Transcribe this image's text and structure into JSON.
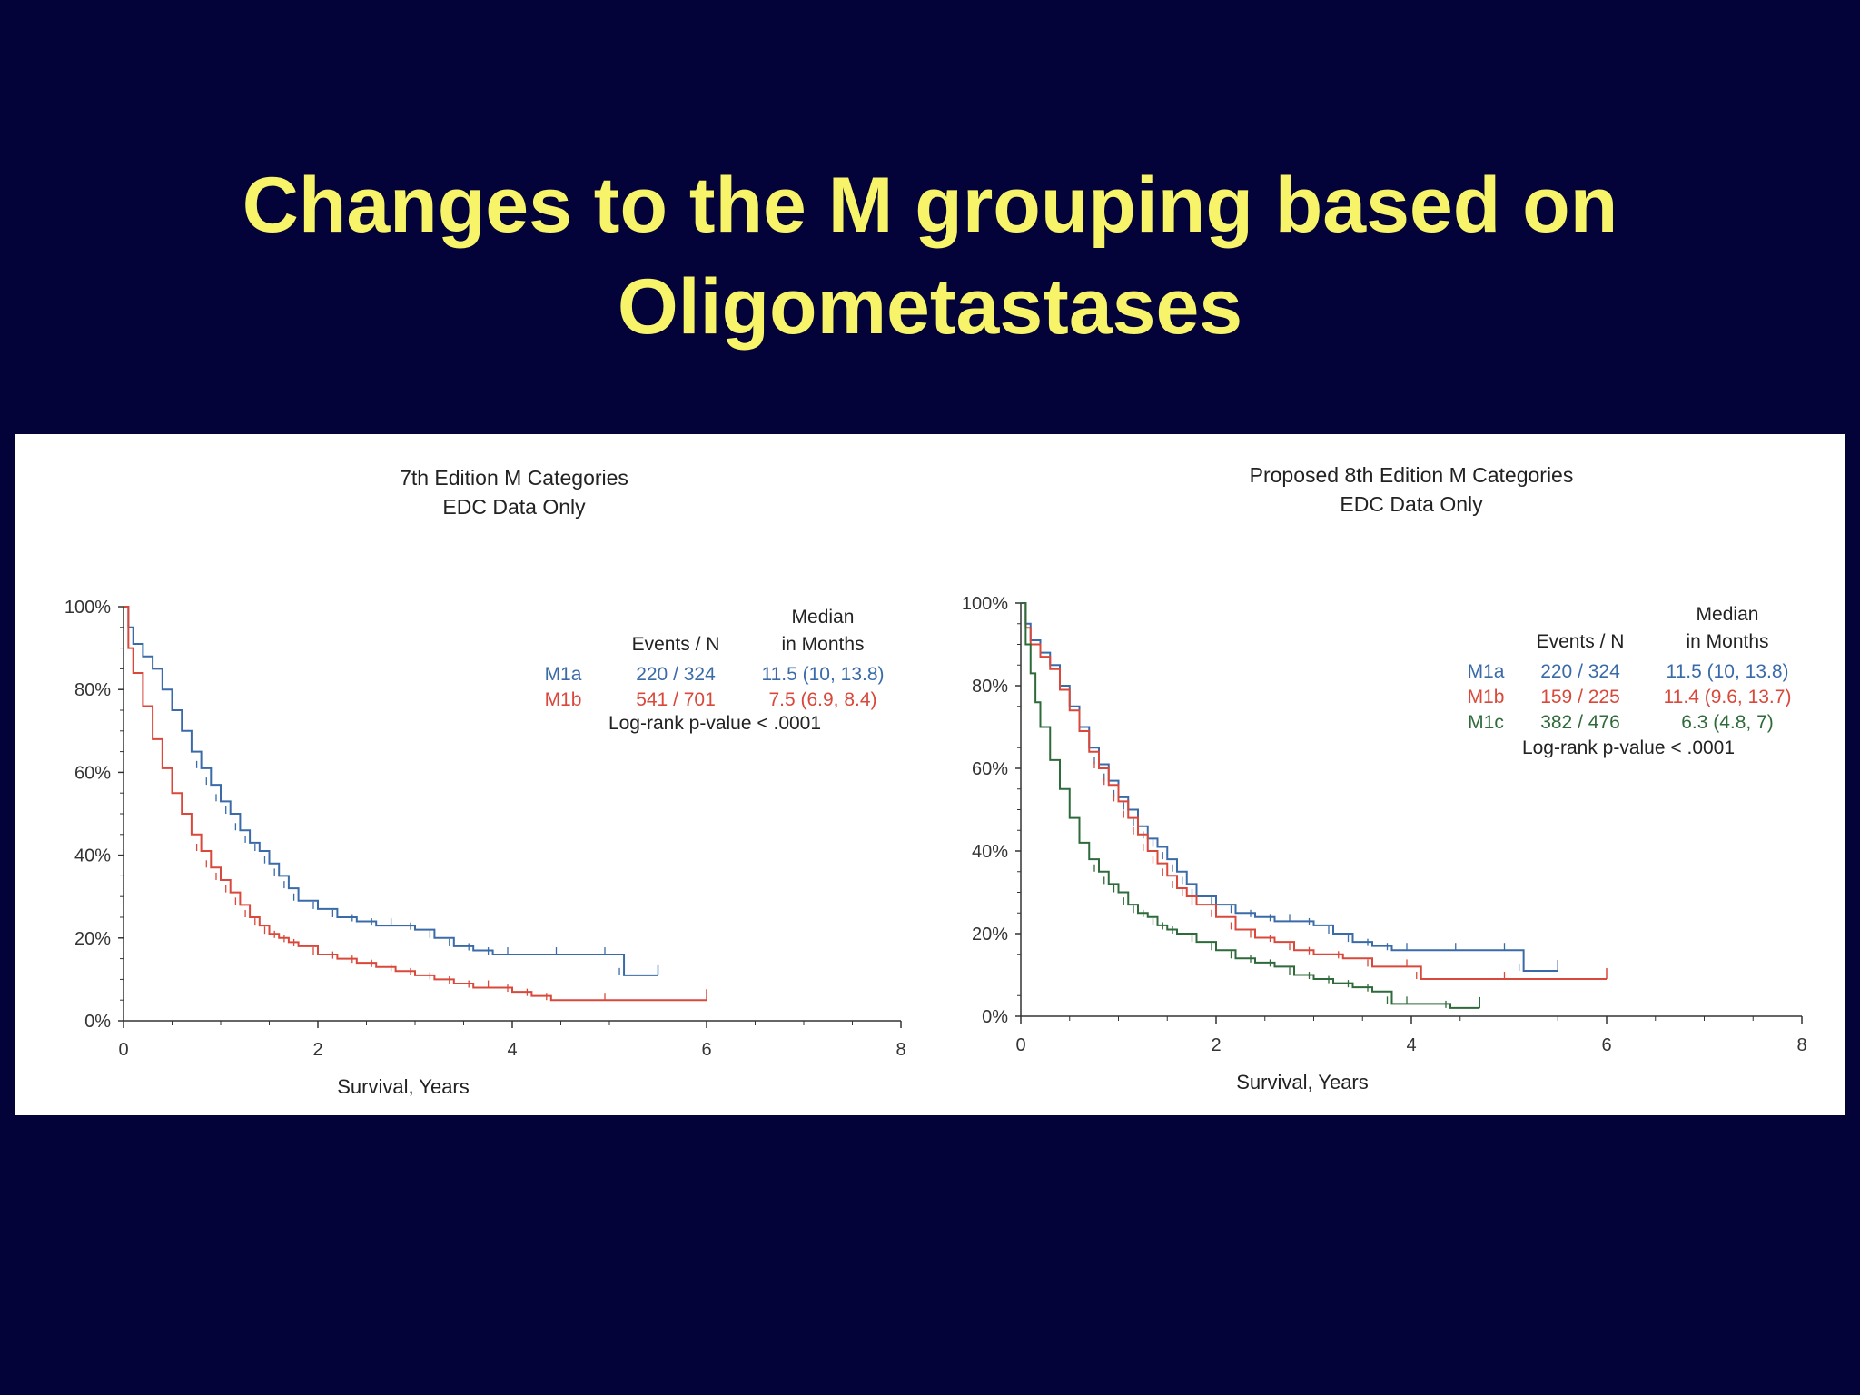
{
  "slide": {
    "title_line1": "Changes to the M grouping based on",
    "title_line2": "Oligometastases"
  },
  "chart_data": [
    {
      "type": "line",
      "subtype": "kaplan-meier",
      "title": "7th Edition M Categories",
      "subtitle": "EDC Data Only",
      "xlabel": "Survival, Years",
      "ylabel": "",
      "xlim": [
        0,
        8
      ],
      "ylim": [
        0,
        100
      ],
      "x_ticks": [
        "0",
        "2",
        "4",
        "6",
        "8"
      ],
      "y_ticks": [
        "0%",
        "20%",
        "40%",
        "60%",
        "80%",
        "100%"
      ],
      "legend": {
        "placement": "top-right",
        "header_events": "Events / N",
        "header_median_1": "Median",
        "header_median_2": "in Months",
        "rows": [
          {
            "label": "M1a",
            "events": "220 / 324",
            "median": "11.5 (10, 13.8)",
            "color": "#3a6ba8"
          },
          {
            "label": "M1b",
            "events": "541 / 701",
            "median": "7.5 (6.9, 8.4)",
            "color": "#d9483b"
          }
        ],
        "pvalue": "Log-rank p-value < .0001"
      },
      "series": [
        {
          "name": "M1a",
          "color": "#3a6ba8",
          "x": [
            0,
            0.05,
            0.1,
            0.2,
            0.3,
            0.4,
            0.5,
            0.6,
            0.7,
            0.8,
            0.9,
            1.0,
            1.1,
            1.2,
            1.3,
            1.4,
            1.5,
            1.6,
            1.7,
            1.8,
            2.0,
            2.2,
            2.4,
            2.6,
            2.8,
            3.0,
            3.2,
            3.4,
            3.6,
            3.8,
            4.0,
            4.5,
            5.0,
            5.15,
            5.5
          ],
          "y": [
            100,
            95,
            91,
            88,
            85,
            80,
            75,
            70,
            65,
            61,
            57,
            53,
            50,
            46,
            43,
            41,
            38,
            35,
            32,
            29,
            27,
            25,
            24,
            23,
            23,
            22,
            20,
            18,
            17,
            16,
            16,
            16,
            16,
            11,
            11
          ]
        },
        {
          "name": "M1b",
          "color": "#d9483b",
          "x": [
            0,
            0.05,
            0.1,
            0.2,
            0.3,
            0.4,
            0.5,
            0.6,
            0.7,
            0.8,
            0.9,
            1.0,
            1.1,
            1.2,
            1.3,
            1.4,
            1.5,
            1.6,
            1.7,
            1.8,
            2.0,
            2.2,
            2.4,
            2.6,
            2.8,
            3.0,
            3.2,
            3.4,
            3.6,
            3.8,
            4.0,
            4.2,
            4.4,
            5.0,
            6.0
          ],
          "y": [
            100,
            90,
            84,
            76,
            68,
            61,
            55,
            50,
            45,
            41,
            37,
            34,
            31,
            28,
            25,
            23,
            21,
            20,
            19,
            18,
            16,
            15,
            14,
            13,
            12,
            11,
            10,
            9,
            8,
            8,
            7,
            6,
            5,
            5,
            5
          ]
        }
      ]
    },
    {
      "type": "line",
      "subtype": "kaplan-meier",
      "title": "Proposed 8th Edition M Categories",
      "subtitle": "EDC Data Only",
      "xlabel": "Survival, Years",
      "ylabel": "",
      "xlim": [
        0,
        8
      ],
      "ylim": [
        0,
        100
      ],
      "x_ticks": [
        "0",
        "2",
        "4",
        "6",
        "8"
      ],
      "y_ticks": [
        "0%",
        "20%",
        "40%",
        "60%",
        "80%",
        "100%"
      ],
      "legend": {
        "placement": "top-right",
        "header_events": "Events / N",
        "header_median_1": "Median",
        "header_median_2": "in Months",
        "rows": [
          {
            "label": "M1a",
            "events": "220 / 324",
            "median": "11.5 (10, 13.8)",
            "color": "#3a6ba8"
          },
          {
            "label": "M1b",
            "events": "159 / 225",
            "median": "11.4 (9.6, 13.7)",
            "color": "#d9483b"
          },
          {
            "label": "M1c",
            "events": "382 / 476",
            "median": "6.3 (4.8, 7)",
            "color": "#2f6a3a"
          }
        ],
        "pvalue": "Log-rank p-value < .0001"
      },
      "series": [
        {
          "name": "M1a",
          "color": "#3a6ba8",
          "x": [
            0,
            0.05,
            0.1,
            0.2,
            0.3,
            0.4,
            0.5,
            0.6,
            0.7,
            0.8,
            0.9,
            1.0,
            1.1,
            1.2,
            1.3,
            1.4,
            1.5,
            1.6,
            1.7,
            1.8,
            2.0,
            2.2,
            2.4,
            2.6,
            2.8,
            3.0,
            3.2,
            3.4,
            3.6,
            3.8,
            4.0,
            4.5,
            5.0,
            5.15,
            5.5
          ],
          "y": [
            100,
            95,
            91,
            88,
            85,
            80,
            75,
            70,
            65,
            61,
            57,
            53,
            50,
            46,
            43,
            41,
            38,
            35,
            32,
            29,
            27,
            25,
            24,
            23,
            23,
            22,
            20,
            18,
            17,
            16,
            16,
            16,
            16,
            11,
            11
          ]
        },
        {
          "name": "M1b",
          "color": "#d9483b",
          "x": [
            0,
            0.05,
            0.1,
            0.2,
            0.3,
            0.4,
            0.5,
            0.6,
            0.7,
            0.8,
            0.9,
            1.0,
            1.1,
            1.2,
            1.3,
            1.4,
            1.5,
            1.6,
            1.7,
            1.8,
            2.0,
            2.2,
            2.4,
            2.6,
            2.8,
            3.0,
            3.3,
            3.6,
            4.0,
            4.1,
            5.0,
            6.0
          ],
          "y": [
            100,
            94,
            90,
            87,
            84,
            79,
            74,
            69,
            64,
            60,
            56,
            52,
            48,
            44,
            40,
            37,
            34,
            31,
            29,
            27,
            24,
            21,
            19,
            18,
            16,
            15,
            14,
            12,
            12,
            9,
            9,
            9
          ]
        },
        {
          "name": "M1c",
          "color": "#2f6a3a",
          "x": [
            0,
            0.05,
            0.1,
            0.15,
            0.2,
            0.3,
            0.4,
            0.5,
            0.6,
            0.7,
            0.8,
            0.9,
            1.0,
            1.1,
            1.2,
            1.3,
            1.4,
            1.5,
            1.6,
            1.8,
            2.0,
            2.2,
            2.4,
            2.6,
            2.8,
            3.0,
            3.2,
            3.4,
            3.6,
            3.8,
            4.0,
            4.4,
            4.7
          ],
          "y": [
            100,
            90,
            83,
            76,
            70,
            62,
            55,
            48,
            42,
            38,
            35,
            32,
            30,
            27,
            25,
            24,
            22,
            21,
            20,
            18,
            16,
            14,
            13,
            12,
            10,
            9,
            8,
            7,
            6,
            3,
            3,
            2,
            2
          ]
        }
      ]
    }
  ]
}
